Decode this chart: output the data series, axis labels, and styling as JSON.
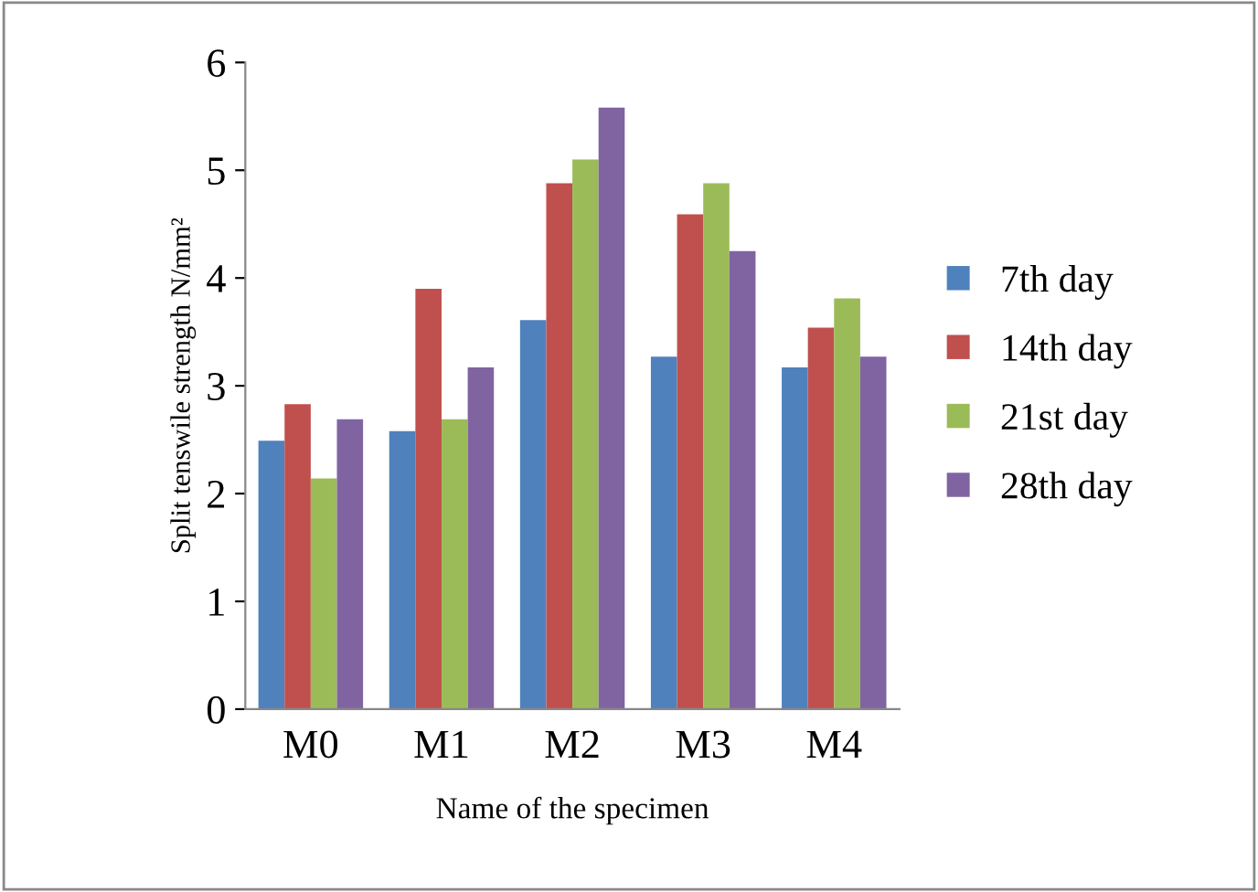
{
  "chart_data": {
    "type": "bar",
    "xlabel": "Name of the specimen",
    "ylabel": "Split tenswile strength N/mm²",
    "categories": [
      "M0",
      "M1",
      "M2",
      "M3",
      "M4"
    ],
    "series": [
      {
        "name": "7th day",
        "color": "#4f81bd",
        "values": [
          2.49,
          2.58,
          3.61,
          3.27,
          3.17
        ]
      },
      {
        "name": "14th day",
        "color": "#c0504d",
        "values": [
          2.83,
          3.9,
          4.88,
          4.59,
          3.54
        ]
      },
      {
        "name": "21st day",
        "color": "#9bbb59",
        "values": [
          2.14,
          2.69,
          5.1,
          4.88,
          3.81
        ]
      },
      {
        "name": "28th day",
        "color": "#8064a2",
        "values": [
          2.69,
          3.17,
          5.58,
          4.25,
          3.27
        ]
      }
    ],
    "ylim": [
      0,
      6
    ],
    "yticks": [
      0,
      1,
      2,
      3,
      4,
      5,
      6
    ],
    "grid": false,
    "legend": "right"
  }
}
